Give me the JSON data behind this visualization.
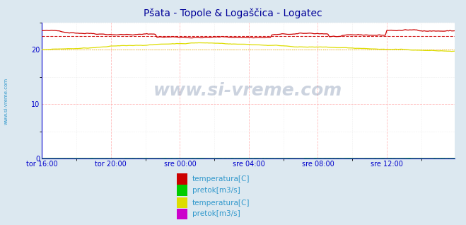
{
  "title": "Pšata - Topole & Logaščica - Logatec",
  "title_color": "#000099",
  "title_fontsize": 10,
  "bg_color": "#dce8f0",
  "plot_bg_color": "#ffffff",
  "grid_major_color": "#ffaaaa",
  "grid_minor_color": "#cccccc",
  "xlim": [
    0,
    287
  ],
  "ylim": [
    0,
    25
  ],
  "yticks": [
    0,
    10,
    20
  ],
  "xtick_labels": [
    "tor 16:00",
    "tor 20:00",
    "sre 00:00",
    "sre 04:00",
    "sre 08:00",
    "sre 12:00"
  ],
  "xtick_positions": [
    0,
    48,
    96,
    144,
    192,
    240
  ],
  "tick_color": "#0000cc",
  "spine_color": "#0000cc",
  "watermark": "www.si-vreme.com",
  "line1_color": "#cc0000",
  "line1_label": "temperatura[C]",
  "line2_color": "#00cc00",
  "line2_label": "pretok[m3/s]",
  "line3_color": "#dddd00",
  "line3_label": "temperatura[C]",
  "line4_color": "#cc00cc",
  "line4_label": "pretok[m3/s]",
  "avg1_color": "#cc0000",
  "avg1_value": 22.5,
  "avg2_color": "#ddcc00",
  "avg2_value": 20.0,
  "sidebar_text": "www.si-vreme.com",
  "sidebar_color": "#3399cc",
  "arrow_color": "#990000"
}
